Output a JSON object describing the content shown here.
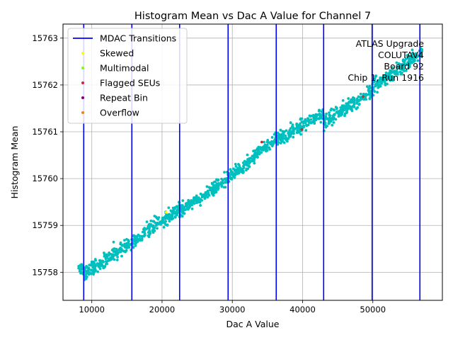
{
  "chart_data": {
    "type": "scatter",
    "title": "Histogram Mean vs Dac A Value for Channel 7",
    "xlabel": "Dac A Value",
    "ylabel": "Histogram Mean",
    "xlim": [
      5900,
      59900
    ],
    "ylim": [
      15757.4,
      15763.3
    ],
    "xticks": [
      10000,
      20000,
      30000,
      40000,
      50000
    ],
    "yticks": [
      15758,
      15759,
      15760,
      15761,
      15762,
      15763
    ],
    "grid": true,
    "legend_position": "upper left",
    "legend": [
      {
        "label": "MDAC Transitions",
        "kind": "line",
        "color": "#0000ff"
      },
      {
        "label": "Skewed",
        "kind": "dot",
        "color": "#ffff00"
      },
      {
        "label": "Multimodal",
        "kind": "dot",
        "color": "#7fff00"
      },
      {
        "label": "Flagged SEUs",
        "kind": "dot",
        "color": "#d62728"
      },
      {
        "label": "Repeat Bin",
        "kind": "dot",
        "color": "#800080"
      },
      {
        "label": "Overflow",
        "kind": "dot",
        "color": "#ff7f0e"
      }
    ],
    "annotation_lines": [
      "ATLAS Upgrade",
      "COLUTAV4",
      "Board 92",
      "Chip 1, Run 1916"
    ],
    "mdac_transitions": [
      8850,
      15700,
      22500,
      29400,
      36250,
      43000,
      49900,
      56700
    ],
    "mdac_color": "#0000ff",
    "main_series": {
      "name": "",
      "color": "#00bfbf",
      "segments": [
        {
          "x_start": 8100,
          "x_end": 8850,
          "y_start": 15758.0,
          "y_end": 15758.1
        },
        {
          "x_start": 8850,
          "x_end": 15700,
          "y_start": 15757.95,
          "y_end": 15758.65
        },
        {
          "x_start": 15700,
          "x_end": 22500,
          "y_start": 15758.65,
          "y_end": 15759.35
        },
        {
          "x_start": 22500,
          "x_end": 29400,
          "y_start": 15759.3,
          "y_end": 15760.0
        },
        {
          "x_start": 29400,
          "x_end": 36250,
          "y_start": 15760.0,
          "y_end": 15760.85
        },
        {
          "x_start": 36250,
          "x_end": 43000,
          "y_start": 15760.8,
          "y_end": 15761.4
        },
        {
          "x_start": 43000,
          "x_end": 49900,
          "y_start": 15761.2,
          "y_end": 15761.85
        },
        {
          "x_start": 49900,
          "x_end": 56700,
          "y_start": 15761.95,
          "y_end": 15762.65
        },
        {
          "x_start": 56700,
          "x_end": 57000,
          "y_start": 15762.6,
          "y_end": 15762.7
        }
      ],
      "noise_sd": 0.13
    },
    "flagged_points": [
      {
        "series": "Skewed",
        "x": 20600,
        "y": 15759.28
      },
      {
        "series": "Flagged SEUs",
        "x": 34200,
        "y": 15760.78
      },
      {
        "series": "Flagged SEUs",
        "x": 39900,
        "y": 15761.05
      },
      {
        "series": "Flagged SEUs",
        "x": 48600,
        "y": 15761.75
      }
    ]
  }
}
